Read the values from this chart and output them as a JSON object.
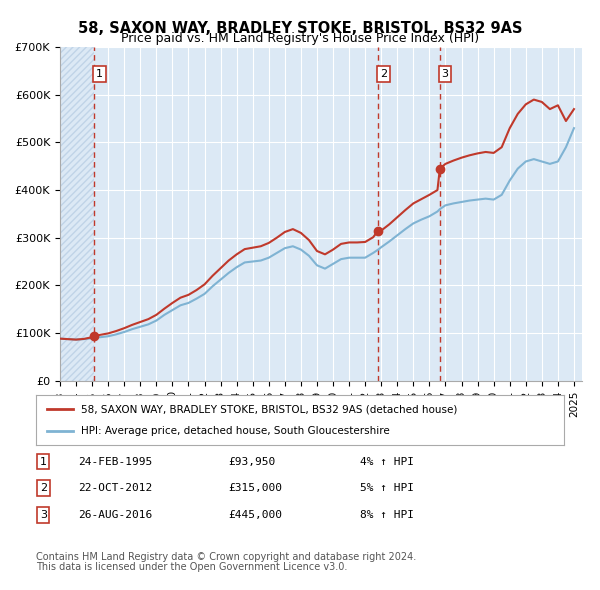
{
  "title": "58, SAXON WAY, BRADLEY STOKE, BRISTOL, BS32 9AS",
  "subtitle": "Price paid vs. HM Land Registry's House Price Index (HPI)",
  "title_fontsize": 11,
  "subtitle_fontsize": 9.5,
  "background_color": "#ffffff",
  "plot_bg_color": "#dce9f5",
  "hatch_color": "#c0d4e8",
  "grid_color": "#ffffff",
  "red_line_color": "#c0392b",
  "blue_line_color": "#7fb3d3",
  "sale_marker_color": "#c0392b",
  "vline_color": "#c0392b",
  "xlabel": "",
  "ylabel": "",
  "ylim": [
    0,
    700000
  ],
  "ytick_labels": [
    "£0",
    "£100K",
    "£200K",
    "£300K",
    "£400K",
    "£500K",
    "£600K",
    "£700K"
  ],
  "ytick_values": [
    0,
    100000,
    200000,
    300000,
    400000,
    500000,
    600000,
    700000
  ],
  "xmin": 1993.0,
  "xmax": 2025.5,
  "sale_events": [
    {
      "year": 1995.14,
      "price": 93950,
      "label": "1"
    },
    {
      "year": 2012.81,
      "price": 315000,
      "label": "2"
    },
    {
      "year": 2016.65,
      "price": 445000,
      "label": "3"
    }
  ],
  "legend_entries": [
    {
      "label": "58, SAXON WAY, BRADLEY STOKE, BRISTOL, BS32 9AS (detached house)",
      "color": "#c0392b",
      "lw": 1.8
    },
    {
      "label": "HPI: Average price, detached house, South Gloucestershire",
      "color": "#7fb3d3",
      "lw": 1.8
    }
  ],
  "table_rows": [
    {
      "num": "1",
      "date": "24-FEB-1995",
      "price": "£93,950",
      "hpi": "4% ↑ HPI"
    },
    {
      "num": "2",
      "date": "22-OCT-2012",
      "price": "£315,000",
      "hpi": "5% ↑ HPI"
    },
    {
      "num": "3",
      "date": "26-AUG-2016",
      "price": "£445,000",
      "hpi": "8% ↑ HPI"
    }
  ],
  "footnote1": "Contains HM Land Registry data © Crown copyright and database right 2024.",
  "footnote2": "This data is licensed under the Open Government Licence v3.0.",
  "hpi_data_x": [
    1993.0,
    1993.5,
    1994.0,
    1994.5,
    1995.0,
    1995.14,
    1995.5,
    1996.0,
    1996.5,
    1997.0,
    1997.5,
    1998.0,
    1998.5,
    1999.0,
    1999.5,
    2000.0,
    2000.5,
    2001.0,
    2001.5,
    2002.0,
    2002.5,
    2003.0,
    2003.5,
    2004.0,
    2004.5,
    2005.0,
    2005.5,
    2006.0,
    2006.5,
    2007.0,
    2007.5,
    2008.0,
    2008.5,
    2009.0,
    2009.5,
    2010.0,
    2010.5,
    2011.0,
    2011.5,
    2012.0,
    2012.5,
    2012.81,
    2013.0,
    2013.5,
    2014.0,
    2014.5,
    2015.0,
    2015.5,
    2016.0,
    2016.5,
    2016.65,
    2017.0,
    2017.5,
    2018.0,
    2018.5,
    2019.0,
    2019.5,
    2020.0,
    2020.5,
    2021.0,
    2021.5,
    2022.0,
    2022.5,
    2023.0,
    2023.5,
    2024.0,
    2024.5,
    2025.0
  ],
  "hpi_data_y": [
    88000,
    87000,
    86000,
    87000,
    89000,
    90000,
    91000,
    93000,
    97000,
    102000,
    108000,
    113000,
    118000,
    126000,
    138000,
    148000,
    158000,
    163000,
    172000,
    182000,
    198000,
    212000,
    226000,
    238000,
    248000,
    250000,
    252000,
    258000,
    268000,
    278000,
    282000,
    275000,
    262000,
    242000,
    235000,
    245000,
    255000,
    258000,
    258000,
    258000,
    268000,
    275000,
    280000,
    292000,
    305000,
    318000,
    330000,
    338000,
    345000,
    355000,
    360000,
    368000,
    372000,
    375000,
    378000,
    380000,
    382000,
    380000,
    390000,
    420000,
    445000,
    460000,
    465000,
    460000,
    455000,
    460000,
    490000,
    530000
  ],
  "red_data_x": [
    1993.0,
    1993.5,
    1994.0,
    1994.5,
    1995.0,
    1995.14,
    1995.5,
    1996.0,
    1996.5,
    1997.0,
    1997.5,
    1998.0,
    1998.5,
    1999.0,
    1999.5,
    2000.0,
    2000.5,
    2001.0,
    2001.5,
    2002.0,
    2002.5,
    2003.0,
    2003.5,
    2004.0,
    2004.5,
    2005.0,
    2005.5,
    2006.0,
    2006.5,
    2007.0,
    2007.5,
    2008.0,
    2008.5,
    2009.0,
    2009.5,
    2010.0,
    2010.5,
    2011.0,
    2011.5,
    2012.0,
    2012.5,
    2012.81,
    2013.0,
    2013.5,
    2014.0,
    2014.5,
    2015.0,
    2015.5,
    2016.0,
    2016.5,
    2016.65,
    2017.0,
    2017.5,
    2018.0,
    2018.5,
    2019.0,
    2019.5,
    2020.0,
    2020.5,
    2021.0,
    2021.5,
    2022.0,
    2022.5,
    2023.0,
    2023.5,
    2024.0,
    2024.5,
    2025.0
  ],
  "red_data_y": [
    88000,
    87000,
    86000,
    87500,
    91000,
    93950,
    96000,
    99000,
    104000,
    110000,
    117000,
    123000,
    129000,
    138000,
    151000,
    163000,
    174000,
    180000,
    190000,
    202000,
    220000,
    236000,
    252000,
    265000,
    276000,
    279000,
    282000,
    289000,
    300000,
    312000,
    318000,
    310000,
    295000,
    272000,
    265000,
    275000,
    287000,
    290000,
    290000,
    291000,
    301000,
    315000,
    315000,
    328000,
    343000,
    358000,
    372000,
    381000,
    390000,
    400000,
    445000,
    455000,
    462000,
    468000,
    473000,
    477000,
    480000,
    478000,
    490000,
    530000,
    560000,
    580000,
    590000,
    585000,
    570000,
    578000,
    545000,
    570000
  ]
}
